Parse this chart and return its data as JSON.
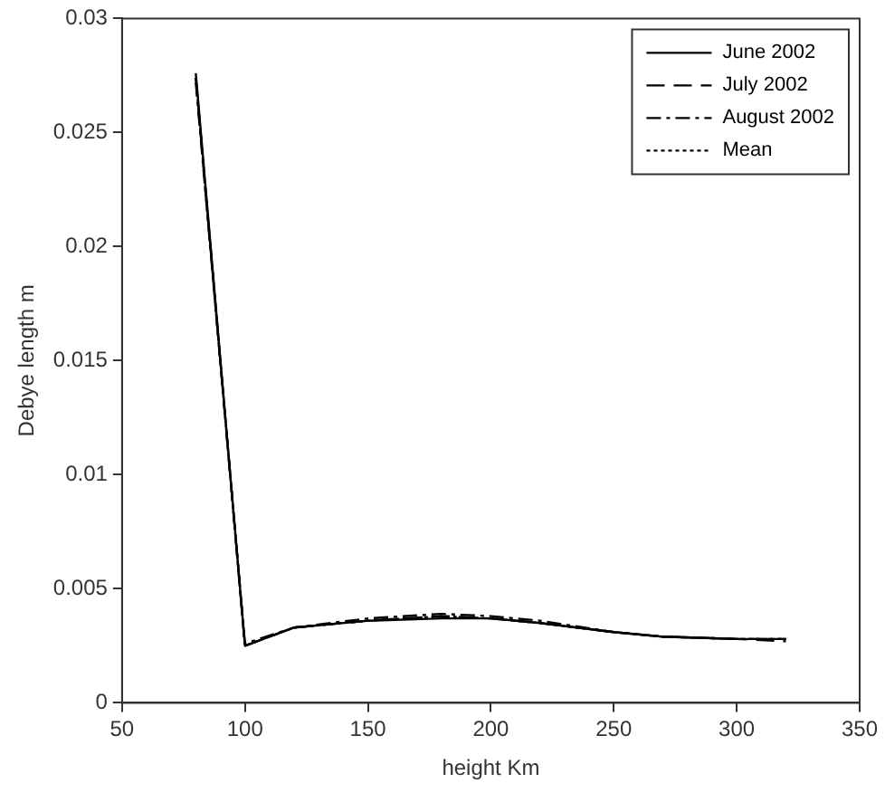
{
  "chart_data": {
    "type": "line",
    "xlabel": "height Km",
    "ylabel": "Debye length m",
    "xlim": [
      50,
      350
    ],
    "xticks": [
      50,
      100,
      150,
      200,
      250,
      300,
      350
    ],
    "ylim": [
      0,
      0.03
    ],
    "yticks": [
      0,
      0.005,
      0.01,
      0.015,
      0.02,
      0.025,
      0.03
    ],
    "x": [
      80,
      100,
      120,
      150,
      180,
      200,
      220,
      250,
      270,
      300,
      320
    ],
    "legend": "top right",
    "grid": false,
    "marker": "none",
    "series": [
      {
        "name": "June 2002",
        "color": "#000000",
        "line_style": "solid",
        "values": [
          0.0276,
          0.0025,
          0.0033,
          0.0036,
          0.0037,
          0.0037,
          0.0035,
          0.0031,
          0.0029,
          0.0028,
          0.0028
        ]
      },
      {
        "name": "July 2002",
        "color": "#000000",
        "line_style": "dashed",
        "values": [
          0.0274,
          0.0025,
          0.0033,
          0.0036,
          0.0038,
          0.0037,
          0.0035,
          0.0031,
          0.0029,
          0.0028,
          0.0027
        ]
      },
      {
        "name": "August 2002",
        "color": "#000000",
        "line_style": "dashdot",
        "values": [
          0.0272,
          0.0026,
          0.0033,
          0.0037,
          0.0039,
          0.0038,
          0.0036,
          0.0031,
          0.0029,
          0.0028,
          0.0028
        ]
      },
      {
        "name": "Mean",
        "color": "#000000",
        "line_style": "dotted",
        "values": [
          0.0274,
          0.0025,
          0.0033,
          0.0036,
          0.0038,
          0.0037,
          0.0035,
          0.0031,
          0.0029,
          0.0028,
          0.0028
        ]
      }
    ]
  }
}
